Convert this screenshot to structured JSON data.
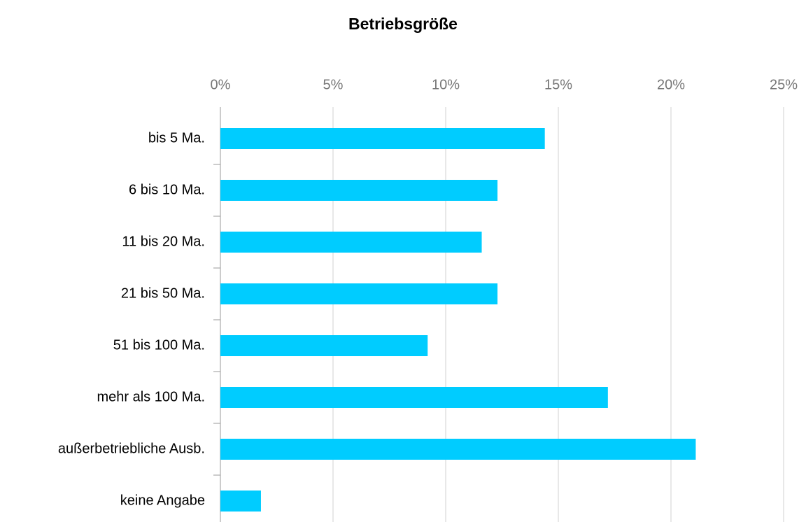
{
  "chart_data": {
    "type": "bar",
    "orientation": "horizontal",
    "title": "Betriebsgröße",
    "categories": [
      "bis 5 Ma.",
      "6 bis 10 Ma.",
      "11 bis 20 Ma.",
      "21 bis 50 Ma.",
      "51 bis 100 Ma.",
      "mehr als 100 Ma.",
      "außerbetriebliche Ausb.",
      "keine Angabe"
    ],
    "values": [
      14.4,
      12.3,
      11.6,
      12.3,
      9.2,
      17.2,
      21.1,
      1.8
    ],
    "color": "#00ccff",
    "xlim": [
      0,
      25
    ],
    "xticks": [
      {
        "value": 0,
        "label": "0%"
      },
      {
        "value": 5,
        "label": "5%"
      },
      {
        "value": 10,
        "label": "10%"
      },
      {
        "value": 15,
        "label": "15%"
      },
      {
        "value": 20,
        "label": "20%"
      },
      {
        "value": 25,
        "label": "25%"
      }
    ],
    "grid": true
  }
}
